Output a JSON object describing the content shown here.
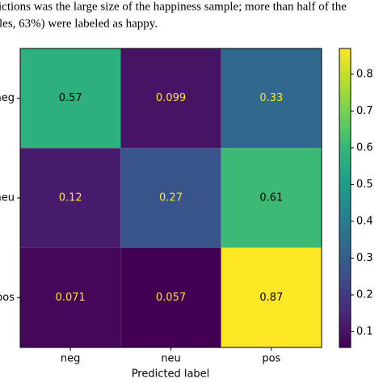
{
  "caption_lines": [
    "ictions was the large size of the happiness sample; more than half of the",
    "les, 63%) were labeled as happy."
  ],
  "chart_data": {
    "type": "heatmap",
    "x_categories": [
      "neg",
      "neu",
      "pos"
    ],
    "y_categories": [
      "neg",
      "neu",
      "pos"
    ],
    "xlabel": "Predicted label",
    "values": [
      [
        0.57,
        0.099,
        0.33
      ],
      [
        0.12,
        0.27,
        0.61
      ],
      [
        0.071,
        0.057,
        0.87
      ]
    ],
    "colormap": "viridis",
    "clim": [
      0.057,
      0.87
    ],
    "colorbar_ticks": [
      0.1,
      0.2,
      0.3,
      0.4,
      0.5,
      0.6,
      0.7,
      0.8
    ]
  }
}
